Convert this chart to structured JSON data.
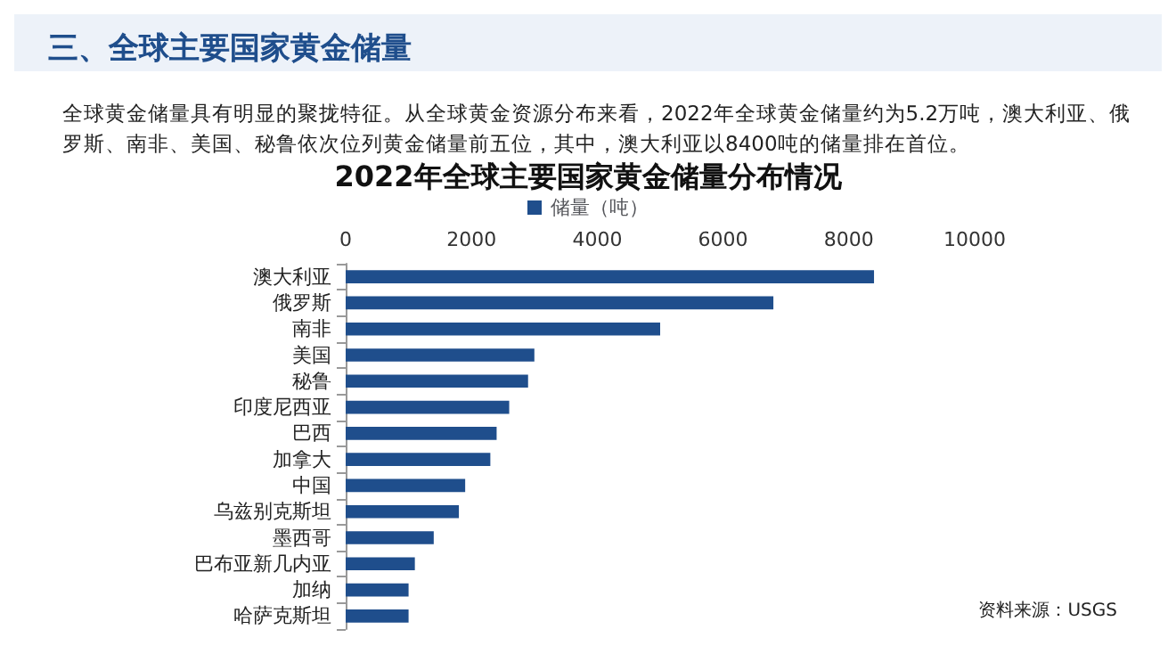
{
  "chart_data": {
    "type": "bar",
    "orientation": "horizontal",
    "title": "三、全球主要国家黄金储量",
    "subtitle": "2022年全球主要国家黄金储量分布情况",
    "annotations": [
      "全球黄金储量具有明显的聚拢特征。从全球黄金资源分布来看，2022年全球黄金储量约为5.2万吨，澳大利亚、俄罗斯、南非、美国、秘鲁依次位列黄金储量前五位，其中，澳大利亚以8400吨的储量排在首位。",
      "资料来源：USGS"
    ],
    "categories": [
      "澳大利亚",
      "俄罗斯",
      "南非",
      "美国",
      "秘鲁",
      "印度尼西亚",
      "巴西",
      "加拿大",
      "中国",
      "乌兹别克斯坦",
      "墨西哥",
      "巴布亚新几内亚",
      "加纳",
      "哈萨克斯坦"
    ],
    "series": [
      {
        "name": "储量（吨）",
        "color": "#1f4e8c",
        "values": [
          8400,
          6800,
          5000,
          3000,
          2900,
          2600,
          2400,
          2300,
          1900,
          1800,
          1400,
          1100,
          1000,
          1000
        ]
      }
    ],
    "xlim": [
      0,
      10000
    ],
    "xticks": [
      0,
      2000,
      4000,
      6000,
      8000,
      10000
    ],
    "grid": false,
    "legend": "top"
  }
}
